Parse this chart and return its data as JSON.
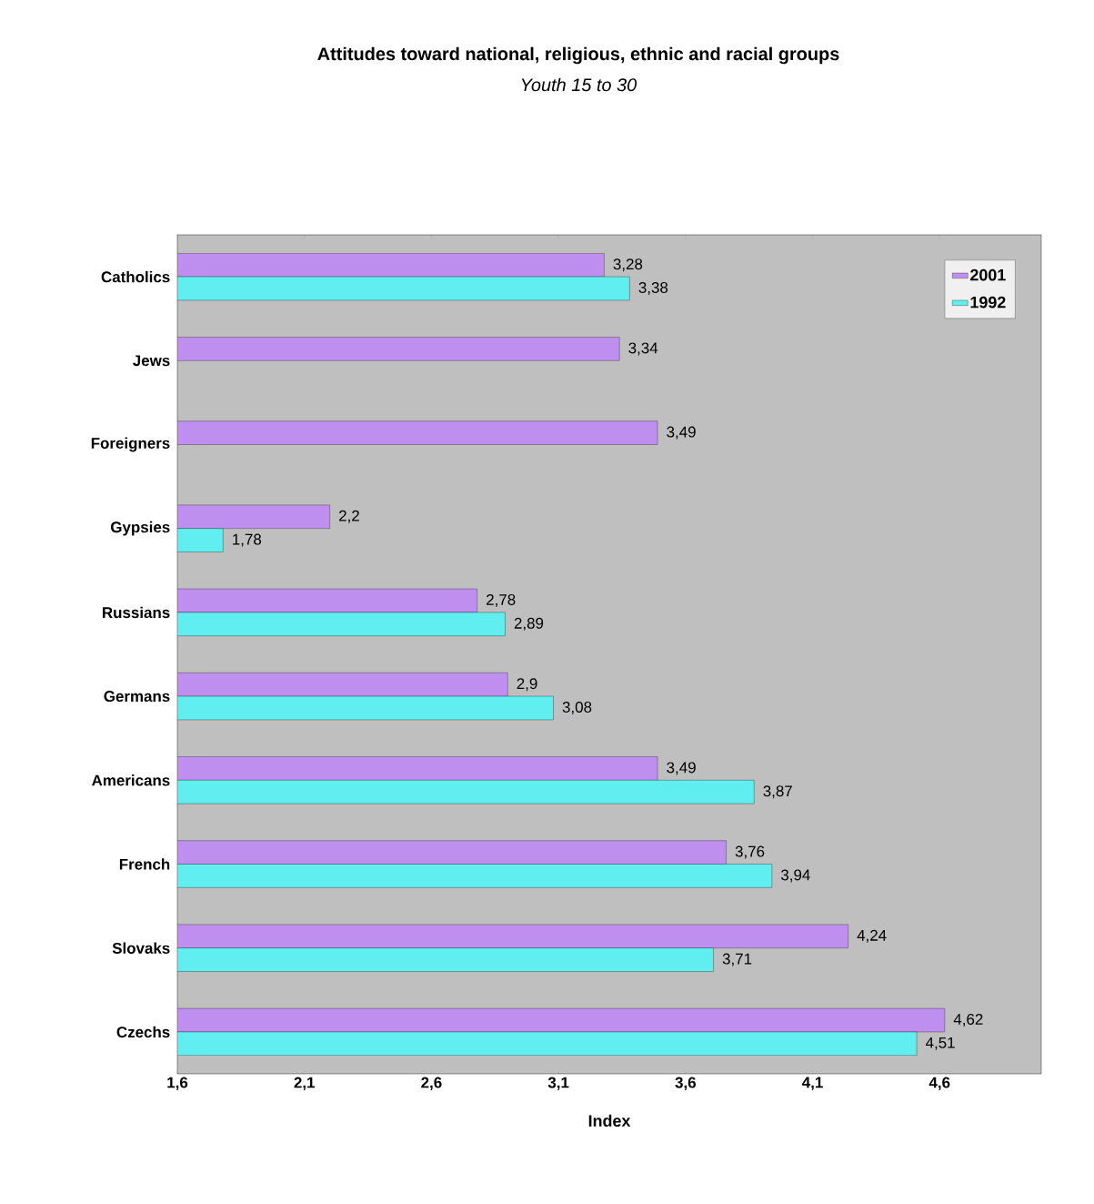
{
  "chart_data": {
    "type": "bar",
    "orientation": "horizontal",
    "title": "Attitudes toward national, religious, ethnic and racial groups",
    "subtitle": "Youth 15 to 30",
    "xlabel": "Index",
    "categories": [
      "Catholics",
      "Jews",
      "Foreigners",
      "Gypsies",
      "Russians",
      "Germans",
      "Americans",
      "French",
      "Slovaks",
      "Czechs"
    ],
    "series": [
      {
        "name": "2001",
        "color": "#bf8ff0",
        "values": [
          3.28,
          3.34,
          3.49,
          2.2,
          2.78,
          2.9,
          3.49,
          3.76,
          4.24,
          4.62
        ],
        "value_labels": [
          "3,28",
          "3,34",
          "3,49",
          "2,2",
          "2,78",
          "2,9",
          "3,49",
          "3,76",
          "4,24",
          "4,62"
        ]
      },
      {
        "name": "1992",
        "color": "#60eef0",
        "values": [
          3.38,
          null,
          null,
          1.78,
          2.89,
          3.08,
          3.87,
          3.94,
          3.71,
          4.51
        ],
        "value_labels": [
          "3,38",
          null,
          null,
          "1,78",
          "2,89",
          "3,08",
          "3,87",
          "3,94",
          "3,71",
          "4,51"
        ]
      }
    ],
    "xlim": [
      1.6,
      5.0
    ],
    "xticks": [
      {
        "value": 1.6,
        "label": "1,6"
      },
      {
        "value": 2.1,
        "label": "2,1"
      },
      {
        "value": 2.6,
        "label": "2,6"
      },
      {
        "value": 3.1,
        "label": "3,1"
      },
      {
        "value": 3.6,
        "label": "3,6"
      },
      {
        "value": 4.1,
        "label": "4,1"
      },
      {
        "value": 4.6,
        "label": "4,6"
      }
    ],
    "grid": false,
    "legend": "top right"
  }
}
